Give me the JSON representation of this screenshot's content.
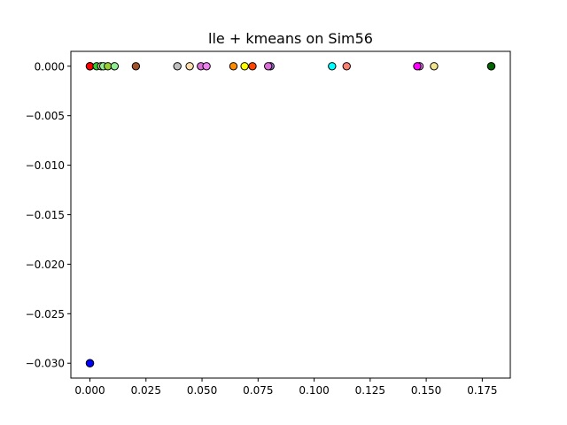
{
  "chart_data": {
    "type": "scatter",
    "title": "lle + kmeans on Sim56",
    "xlabel": "",
    "ylabel": "",
    "xlim": [
      -0.0085,
      0.1875
    ],
    "ylim": [
      -0.0315,
      0.0015
    ],
    "grid": false,
    "x_ticks": [
      0.0,
      0.025,
      0.05,
      0.075,
      0.1,
      0.125,
      0.15,
      0.175
    ],
    "x_tick_labels": [
      "0.000",
      "0.025",
      "0.050",
      "0.075",
      "0.100",
      "0.125",
      "0.150",
      "0.175"
    ],
    "y_ticks": [
      0.0,
      -0.005,
      -0.01,
      -0.015,
      -0.02,
      -0.025,
      -0.03
    ],
    "y_tick_labels": [
      "0.000",
      "−0.005",
      "−0.010",
      "−0.015",
      "−0.020",
      "−0.025",
      "−0.030"
    ],
    "points": [
      {
        "x": 0.0,
        "y": 0.0,
        "color": "#7fff00"
      },
      {
        "x": 0.0,
        "y": 0.0,
        "color": "#ff69b4"
      },
      {
        "x": 0.0,
        "y": 0.0,
        "color": "#ff0000"
      },
      {
        "x": 0.003,
        "y": 0.0,
        "color": "#32cd32"
      },
      {
        "x": 0.005,
        "y": 0.0,
        "color": "#d2b48c"
      },
      {
        "x": 0.006,
        "y": 0.0,
        "color": "#90ee90"
      },
      {
        "x": 0.008,
        "y": 0.0,
        "color": "#9acd32"
      },
      {
        "x": 0.011,
        "y": 0.0,
        "color": "#90ee90"
      },
      {
        "x": 0.0205,
        "y": 0.0,
        "color": "#a0522d"
      },
      {
        "x": 0.039,
        "y": 0.0,
        "color": "#c0c0c0"
      },
      {
        "x": 0.0445,
        "y": 0.0,
        "color": "#ffdead"
      },
      {
        "x": 0.0495,
        "y": 0.0,
        "color": "#da70d6"
      },
      {
        "x": 0.052,
        "y": 0.0,
        "color": "#ee82ee"
      },
      {
        "x": 0.064,
        "y": 0.0,
        "color": "#ff8c00"
      },
      {
        "x": 0.069,
        "y": 0.0,
        "color": "#ffff00"
      },
      {
        "x": 0.0725,
        "y": 0.0,
        "color": "#ff4500"
      },
      {
        "x": 0.0805,
        "y": 0.0,
        "color": "#9370db"
      },
      {
        "x": 0.0795,
        "y": 0.0,
        "color": "#da70d6"
      },
      {
        "x": 0.108,
        "y": 0.0,
        "color": "#00ffff"
      },
      {
        "x": 0.1145,
        "y": 0.0,
        "color": "#fa8072"
      },
      {
        "x": 0.147,
        "y": 0.0,
        "color": "#ee82ee"
      },
      {
        "x": 0.146,
        "y": 0.0,
        "color": "#ff00ff"
      },
      {
        "x": 0.1535,
        "y": 0.0,
        "color": "#f0e68c"
      },
      {
        "x": 0.179,
        "y": 0.0,
        "color": "#228b22"
      },
      {
        "x": 0.179,
        "y": 0.0,
        "color": "#006400"
      },
      {
        "x": 0.0,
        "y": -0.03,
        "color": "#4169e1"
      },
      {
        "x": 0.0,
        "y": -0.03,
        "color": "#0000ff"
      }
    ]
  }
}
